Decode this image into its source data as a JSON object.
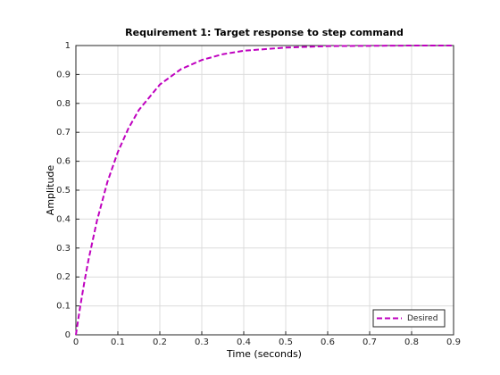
{
  "chart_data": {
    "type": "line",
    "title": "Requirement 1: Target response to step command",
    "x_label": "Time (seconds)",
    "y_label": "Amplitude",
    "x": [
      0,
      0.01,
      0.02,
      0.03,
      0.05,
      0.075,
      0.1,
      0.125,
      0.15,
      0.2,
      0.25,
      0.3,
      0.35,
      0.4,
      0.5,
      0.6,
      0.7,
      0.8,
      0.9
    ],
    "series": [
      {
        "name": "Desired",
        "color": "#bf00bf",
        "values": [
          0,
          0.095,
          0.181,
          0.259,
          0.393,
          0.528,
          0.632,
          0.713,
          0.777,
          0.865,
          0.918,
          0.95,
          0.97,
          0.982,
          0.993,
          0.998,
          0.999,
          1,
          1
        ]
      }
    ],
    "xlim": [
      0,
      0.9
    ],
    "xticks": [
      0,
      0.1,
      0.2,
      0.3,
      0.4,
      0.5,
      0.6,
      0.7,
      0.8,
      0.9
    ],
    "ylim": [
      0,
      1
    ],
    "yticks": [
      0,
      0.1,
      0.2,
      0.3,
      0.4,
      0.5,
      0.6,
      0.7,
      0.8,
      0.9,
      1
    ],
    "grid": true,
    "legend": "southeast"
  }
}
